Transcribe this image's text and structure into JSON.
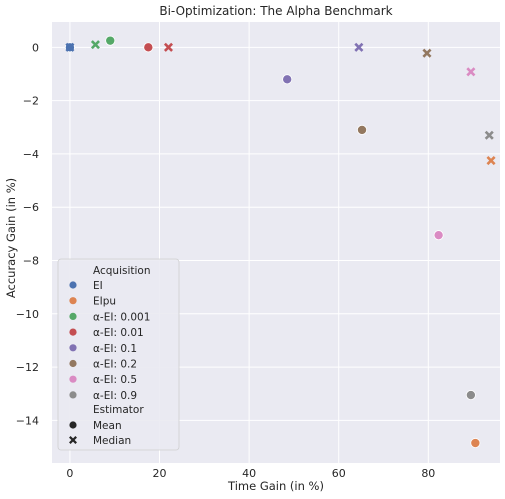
{
  "chart_data": {
    "type": "scatter",
    "title": "Bi-Optimization: The Alpha Benchmark",
    "xlabel": "Time Gain (in %)",
    "ylabel": "Accuracy Gain (in %)",
    "xlim": [
      -4,
      96
    ],
    "ylim": [
      -15.6,
      0.95
    ],
    "xticks": [
      0,
      20,
      40,
      60,
      80
    ],
    "yticks": [
      0,
      -2,
      -4,
      -6,
      -8,
      -10,
      -12,
      -14
    ],
    "grid": true,
    "legend_position": "lower-left",
    "legend": {
      "hue_title": "Acquisition",
      "style_title": "Estimator",
      "style_entries": [
        {
          "label": "Mean",
          "marker": "circle"
        },
        {
          "label": "Median",
          "marker": "x"
        }
      ]
    },
    "series": [
      {
        "name": "EI",
        "color": "#4c72b0",
        "points": [
          {
            "estimator": "Mean",
            "x": 0,
            "y": 0
          },
          {
            "estimator": "Median",
            "x": 0,
            "y": 0
          }
        ]
      },
      {
        "name": "EIpu",
        "color": "#dd8452",
        "points": [
          {
            "estimator": "Mean",
            "x": 90.5,
            "y": -14.85
          },
          {
            "estimator": "Median",
            "x": 94,
            "y": -4.25
          }
        ]
      },
      {
        "name": "α-EI: 0.001",
        "color": "#55a868",
        "points": [
          {
            "estimator": "Mean",
            "x": 9,
            "y": 0.25
          },
          {
            "estimator": "Median",
            "x": 5.7,
            "y": 0.1
          }
        ]
      },
      {
        "name": "α-EI: 0.01",
        "color": "#c44e52",
        "points": [
          {
            "estimator": "Mean",
            "x": 17.5,
            "y": 0
          },
          {
            "estimator": "Median",
            "x": 22,
            "y": 0
          }
        ]
      },
      {
        "name": "α-EI: 0.1",
        "color": "#8172b3",
        "points": [
          {
            "estimator": "Mean",
            "x": 48.5,
            "y": -1.2
          },
          {
            "estimator": "Median",
            "x": 64.5,
            "y": 0
          }
        ]
      },
      {
        "name": "α-EI: 0.2",
        "color": "#937860",
        "points": [
          {
            "estimator": "Mean",
            "x": 65.2,
            "y": -3.1
          },
          {
            "estimator": "Median",
            "x": 79.7,
            "y": -0.22
          }
        ]
      },
      {
        "name": "α-EI: 0.5",
        "color": "#da8bc3",
        "points": [
          {
            "estimator": "Mean",
            "x": 82.3,
            "y": -7.05
          },
          {
            "estimator": "Median",
            "x": 89.5,
            "y": -0.92
          }
        ]
      },
      {
        "name": "α-EI: 0.9",
        "color": "#8c8c8c",
        "points": [
          {
            "estimator": "Mean",
            "x": 89.5,
            "y": -13.05
          },
          {
            "estimator": "Median",
            "x": 93.6,
            "y": -3.3
          }
        ]
      }
    ]
  }
}
